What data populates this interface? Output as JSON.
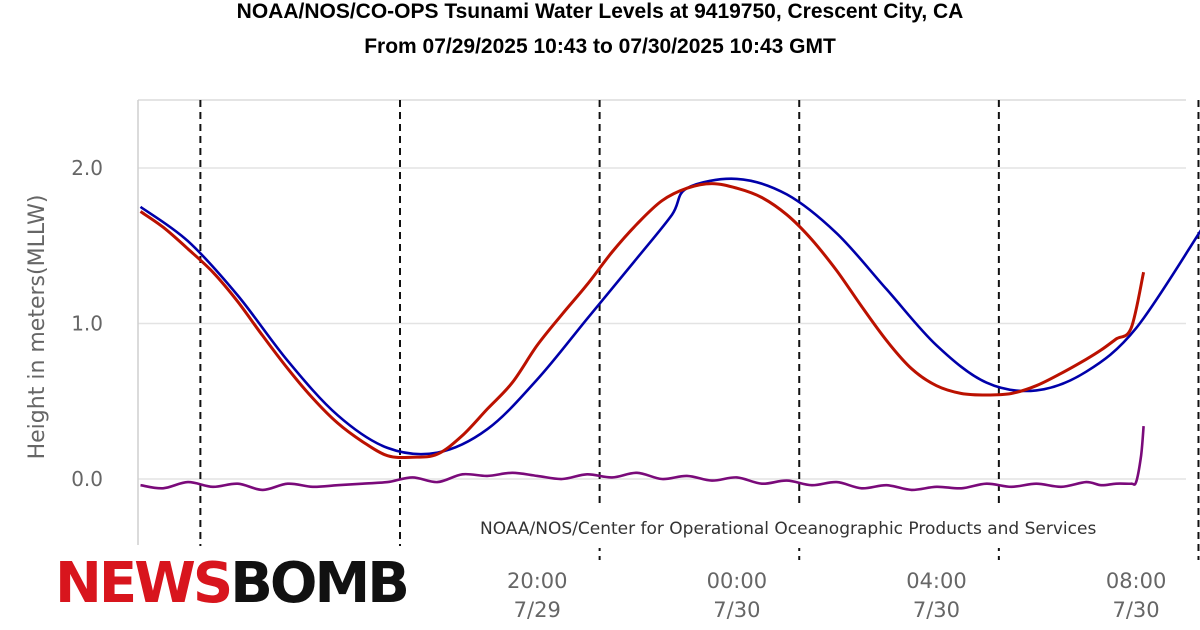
{
  "title_line1": "NOAA/NOS/CO-OPS Tsunami Water Levels at 9419750, Crescent City, CA",
  "title_line2": "From 07/29/2025 10:43 to 07/30/2025 10:43 GMT",
  "credit": "NOAA/NOS/Center for Operational Oceanographic Products and Services",
  "logo": {
    "part1": "NEWS",
    "part2": "BOMB",
    "colors": {
      "part1": "#d8151d",
      "part2": "#111111"
    }
  },
  "chart_data": {
    "type": "line",
    "ylabel": "Height in meters(MLLW)",
    "ylim": [
      -0.35,
      2.45
    ],
    "y_ticks": [
      "0.0",
      "1.0",
      "2.0"
    ],
    "xlim": [
      12.0,
      33.0
    ],
    "x_ticks": [
      {
        "x": 20,
        "time": "20:00",
        "date": "7/29"
      },
      {
        "x": 24,
        "time": "00:00",
        "date": "7/30"
      },
      {
        "x": 28,
        "time": "04:00",
        "date": "7/30"
      },
      {
        "x": 32,
        "time": "08:00",
        "date": "7/30"
      }
    ],
    "vertical_dashed_lines_x": [
      13.25,
      17.25,
      21.25,
      25.25,
      29.25,
      33.25
    ],
    "grid": "horizontal",
    "series": [
      {
        "color": "#0000aa",
        "x": [
          12.05,
          13,
          14,
          15,
          16,
          17,
          18,
          19,
          20,
          21,
          22,
          22.7,
          23,
          24,
          25,
          26,
          27,
          28,
          29,
          30,
          31,
          32,
          33.3
        ],
        "values": [
          1.75,
          1.53,
          1.18,
          0.76,
          0.41,
          0.2,
          0.17,
          0.32,
          0.64,
          1.03,
          1.42,
          1.7,
          1.87,
          1.93,
          1.83,
          1.58,
          1.22,
          0.86,
          0.62,
          0.57,
          0.69,
          0.97,
          1.6
        ]
      },
      {
        "color": "#bb1100",
        "x": [
          12.05,
          12.5,
          13,
          13.5,
          14,
          14.5,
          15,
          15.5,
          16,
          16.5,
          17,
          17.5,
          18,
          18.5,
          19,
          19.5,
          20,
          20.5,
          21,
          21.5,
          22,
          22.5,
          23,
          23.5,
          24,
          24.5,
          25,
          25.5,
          26,
          26.5,
          27,
          27.5,
          28,
          28.5,
          29,
          29.5,
          30,
          30.5,
          31,
          31.3,
          31.6,
          31.9,
          32.15
        ],
        "values": [
          1.72,
          1.62,
          1.48,
          1.33,
          1.14,
          0.92,
          0.71,
          0.52,
          0.36,
          0.24,
          0.15,
          0.14,
          0.16,
          0.28,
          0.45,
          0.62,
          0.86,
          1.06,
          1.25,
          1.46,
          1.64,
          1.79,
          1.87,
          1.9,
          1.87,
          1.81,
          1.7,
          1.54,
          1.34,
          1.11,
          0.89,
          0.71,
          0.6,
          0.55,
          0.54,
          0.55,
          0.6,
          0.68,
          0.77,
          0.83,
          0.9,
          0.97,
          1.33
        ]
      },
      {
        "color": "#7a0a7a",
        "x": [
          12.05,
          12.5,
          13,
          13.5,
          14,
          14.5,
          15,
          15.5,
          16,
          16.5,
          17,
          17.5,
          18,
          18.5,
          19,
          19.5,
          20,
          20.5,
          21,
          21.5,
          22,
          22.5,
          23,
          23.5,
          24,
          24.5,
          25,
          25.5,
          26,
          26.5,
          27,
          27.5,
          28,
          28.5,
          29,
          29.5,
          30,
          30.5,
          31,
          31.3,
          31.6,
          31.9,
          32.0,
          32.1,
          32.15
        ],
        "values": [
          -0.04,
          -0.06,
          -0.02,
          -0.05,
          -0.03,
          -0.07,
          -0.03,
          -0.05,
          -0.04,
          -0.03,
          -0.02,
          0.01,
          -0.02,
          0.03,
          0.02,
          0.04,
          0.02,
          0.0,
          0.03,
          0.01,
          0.04,
          0.0,
          0.02,
          -0.01,
          0.01,
          -0.03,
          -0.01,
          -0.04,
          -0.02,
          -0.06,
          -0.04,
          -0.07,
          -0.05,
          -0.06,
          -0.03,
          -0.05,
          -0.03,
          -0.05,
          -0.02,
          -0.04,
          -0.03,
          -0.03,
          -0.02,
          0.15,
          0.34
        ]
      }
    ]
  }
}
